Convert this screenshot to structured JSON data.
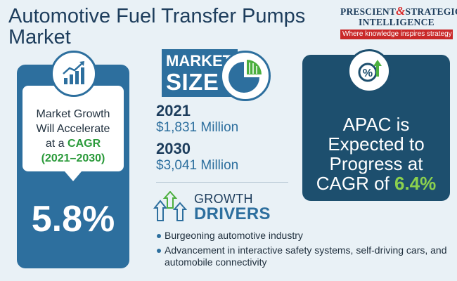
{
  "header": {
    "title": "Automotive Fuel Transfer Pumps Market"
  },
  "logo": {
    "line1_a": "PRESCIENT",
    "amp": "&",
    "line1_b": "STRATEGIC",
    "line2": "INTELLIGENCE",
    "tagline": "Where knowledge inspires strategy"
  },
  "cagr": {
    "icon": "growth-chart-icon",
    "line1": "Market Growth",
    "line2": "Will Accelerate",
    "line3_a": "at a ",
    "line3_b": "CAGR",
    "line4": "(2021–2030)",
    "value": "5.8%"
  },
  "market_size": {
    "label_1": "MARKET",
    "label_2": "SIZE",
    "icon": "pie-chart-icon",
    "entries": [
      {
        "year": "2021",
        "value": "$1,831 Million"
      },
      {
        "year": "2030",
        "value": "$3,041 Million"
      }
    ]
  },
  "apac": {
    "icon": "percent-up-icon",
    "line1": "APAC is",
    "line2": "Expected to",
    "line3": "Progress at",
    "line4_a": "CAGR of ",
    "line4_b": "6.4%"
  },
  "growth_drivers": {
    "icon": "growth-arrows-icon",
    "label_1": "GROWTH",
    "label_2": "DRIVERS",
    "items": [
      "Burgeoning automotive industry",
      "Advancement in interactive safety systems, self-driving cars, and automobile connectivity"
    ]
  },
  "colors": {
    "background": "#e9f1f6",
    "primary_blue": "#2d6f9e",
    "dark_blue": "#1d4f6e",
    "accent_green": "#2a9a3a",
    "apac_green": "#8bd14e",
    "logo_red": "#c92929"
  }
}
